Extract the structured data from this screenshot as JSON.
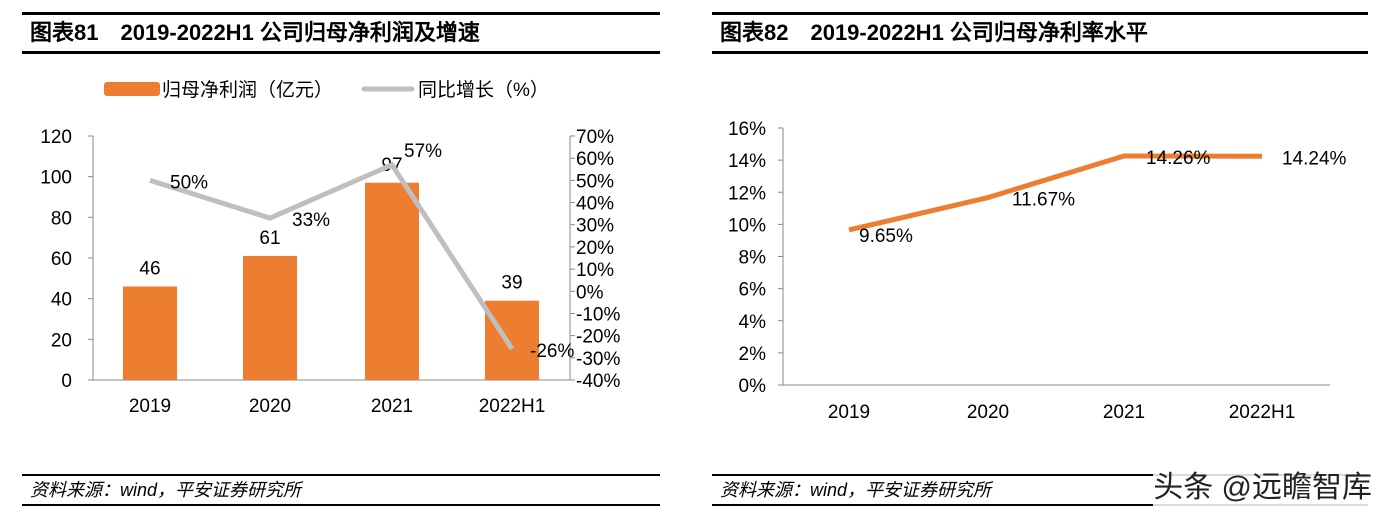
{
  "chart_data": [
    {
      "type": "bar+line",
      "title": "图表81　2019-2022H1 公司归母净利润及增速",
      "categories": [
        "2019",
        "2020",
        "2021",
        "2022H1"
      ],
      "series": [
        {
          "name": "归母净利润（亿元）",
          "type": "bar",
          "axis": "left",
          "values": [
            46,
            61,
            97,
            39
          ],
          "labels": [
            "46",
            "61",
            "97",
            "39"
          ],
          "color": "#ED7D31"
        },
        {
          "name": "同比增长（%）",
          "type": "line",
          "axis": "right",
          "values": [
            50,
            33,
            57,
            -26
          ],
          "labels": [
            "50%",
            "33%",
            "57%",
            "-26%"
          ],
          "color": "#BFBFBF"
        }
      ],
      "ylim": [
        0,
        120
      ],
      "yticks": [
        "0",
        "20",
        "40",
        "60",
        "80",
        "100",
        "120"
      ],
      "y2lim": [
        -40,
        70
      ],
      "y2ticks": [
        "70%",
        "60%",
        "50%",
        "40%",
        "30%",
        "20%",
        "10%",
        "0%",
        "-10%",
        "-20%",
        "-30%",
        "-40%"
      ],
      "legend": "top",
      "source": "资料来源：wind，平安证券研究所"
    },
    {
      "type": "line",
      "title": "图表82　2019-2022H1 公司归母净利率水平",
      "categories": [
        "2019",
        "2020",
        "2021",
        "2022H1"
      ],
      "series": [
        {
          "type": "line",
          "values": [
            9.65,
            11.67,
            14.26,
            14.24
          ],
          "labels": [
            "9.65%",
            "11.67%",
            "14.26%",
            "14.24%"
          ],
          "color": "#ED7D31"
        }
      ],
      "ylim": [
        0,
        16
      ],
      "yticks": [
        "0%",
        "2%",
        "4%",
        "6%",
        "8%",
        "10%",
        "12%",
        "14%",
        "16%"
      ],
      "source": "资料来源：wind，平安证券研究所"
    }
  ],
  "watermark": "头条 @远瞻智库"
}
